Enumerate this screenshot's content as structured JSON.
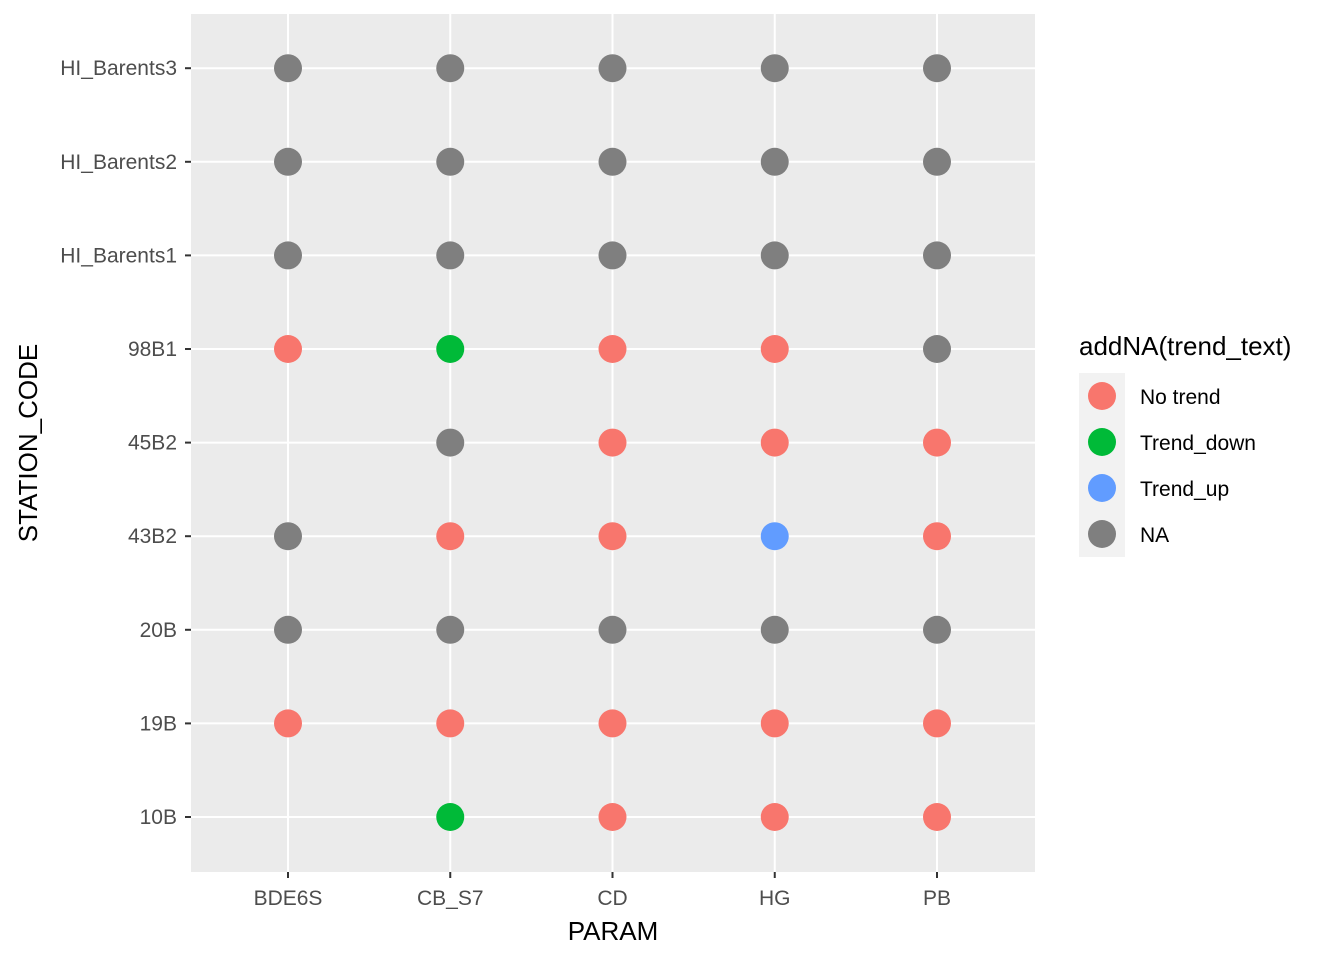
{
  "chart_data": {
    "type": "scatter",
    "title": "",
    "xlabel": "PARAM",
    "ylabel": "STATION_CODE",
    "x_categories": [
      "BDE6S",
      "CB_S7",
      "CD",
      "HG",
      "PB"
    ],
    "y_categories": [
      "10B",
      "19B",
      "20B",
      "43B2",
      "45B2",
      "98B1",
      "HI_Barents1",
      "HI_Barents2",
      "HI_Barents3"
    ],
    "grid": true,
    "legend": {
      "title": "addNA(trend_text)",
      "placement": "right",
      "entries": [
        {
          "label": "No trend",
          "color": "#F8766D"
        },
        {
          "label": "Trend_down",
          "color": "#00BA38"
        },
        {
          "label": "Trend_up",
          "color": "#619CFF"
        },
        {
          "label": "NA",
          "color": "#7F7F7F"
        }
      ]
    },
    "points": [
      {
        "x": "CB_S7",
        "y": "10B",
        "trend": "Trend_down"
      },
      {
        "x": "CD",
        "y": "10B",
        "trend": "No trend"
      },
      {
        "x": "HG",
        "y": "10B",
        "trend": "No trend"
      },
      {
        "x": "PB",
        "y": "10B",
        "trend": "No trend"
      },
      {
        "x": "BDE6S",
        "y": "19B",
        "trend": "No trend"
      },
      {
        "x": "CB_S7",
        "y": "19B",
        "trend": "No trend"
      },
      {
        "x": "CD",
        "y": "19B",
        "trend": "No trend"
      },
      {
        "x": "HG",
        "y": "19B",
        "trend": "No trend"
      },
      {
        "x": "PB",
        "y": "19B",
        "trend": "No trend"
      },
      {
        "x": "BDE6S",
        "y": "20B",
        "trend": "NA"
      },
      {
        "x": "CB_S7",
        "y": "20B",
        "trend": "NA"
      },
      {
        "x": "CD",
        "y": "20B",
        "trend": "NA"
      },
      {
        "x": "HG",
        "y": "20B",
        "trend": "NA"
      },
      {
        "x": "PB",
        "y": "20B",
        "trend": "NA"
      },
      {
        "x": "BDE6S",
        "y": "43B2",
        "trend": "NA"
      },
      {
        "x": "CB_S7",
        "y": "43B2",
        "trend": "No trend"
      },
      {
        "x": "CD",
        "y": "43B2",
        "trend": "No trend"
      },
      {
        "x": "HG",
        "y": "43B2",
        "trend": "Trend_up"
      },
      {
        "x": "PB",
        "y": "43B2",
        "trend": "No trend"
      },
      {
        "x": "CB_S7",
        "y": "45B2",
        "trend": "NA"
      },
      {
        "x": "CD",
        "y": "45B2",
        "trend": "No trend"
      },
      {
        "x": "HG",
        "y": "45B2",
        "trend": "No trend"
      },
      {
        "x": "PB",
        "y": "45B2",
        "trend": "No trend"
      },
      {
        "x": "BDE6S",
        "y": "98B1",
        "trend": "No trend"
      },
      {
        "x": "CB_S7",
        "y": "98B1",
        "trend": "Trend_down"
      },
      {
        "x": "CD",
        "y": "98B1",
        "trend": "No trend"
      },
      {
        "x": "HG",
        "y": "98B1",
        "trend": "No trend"
      },
      {
        "x": "PB",
        "y": "98B1",
        "trend": "NA"
      },
      {
        "x": "BDE6S",
        "y": "HI_Barents1",
        "trend": "NA"
      },
      {
        "x": "CB_S7",
        "y": "HI_Barents1",
        "trend": "NA"
      },
      {
        "x": "CD",
        "y": "HI_Barents1",
        "trend": "NA"
      },
      {
        "x": "HG",
        "y": "HI_Barents1",
        "trend": "NA"
      },
      {
        "x": "PB",
        "y": "HI_Barents1",
        "trend": "NA"
      },
      {
        "x": "BDE6S",
        "y": "HI_Barents2",
        "trend": "NA"
      },
      {
        "x": "CB_S7",
        "y": "HI_Barents2",
        "trend": "NA"
      },
      {
        "x": "CD",
        "y": "HI_Barents2",
        "trend": "NA"
      },
      {
        "x": "HG",
        "y": "HI_Barents2",
        "trend": "NA"
      },
      {
        "x": "PB",
        "y": "HI_Barents2",
        "trend": "NA"
      },
      {
        "x": "BDE6S",
        "y": "HI_Barents3",
        "trend": "NA"
      },
      {
        "x": "CB_S7",
        "y": "HI_Barents3",
        "trend": "NA"
      },
      {
        "x": "CD",
        "y": "HI_Barents3",
        "trend": "NA"
      },
      {
        "x": "HG",
        "y": "HI_Barents3",
        "trend": "NA"
      },
      {
        "x": "PB",
        "y": "HI_Barents3",
        "trend": "NA"
      }
    ]
  },
  "colors": {
    "panel_background": "#EBEBEB",
    "grid_line": "#FFFFFF",
    "legend_key_background": "#F2F2F2"
  }
}
